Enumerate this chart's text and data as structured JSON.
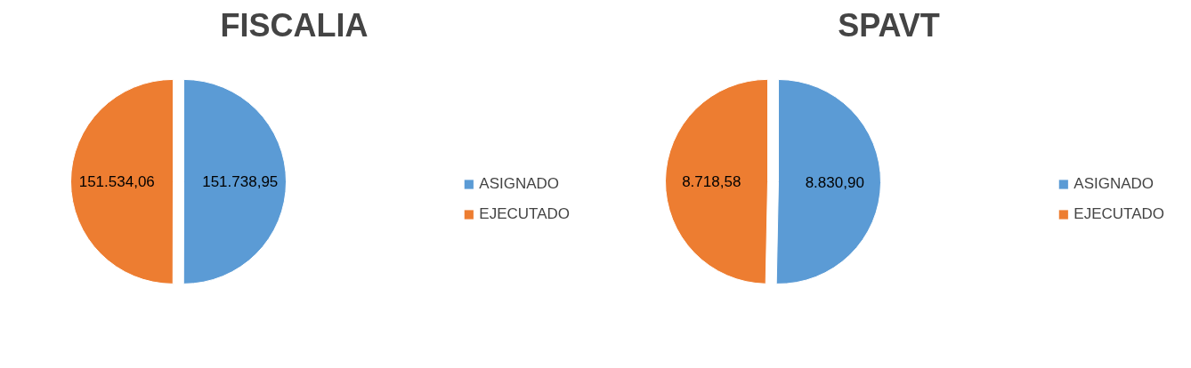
{
  "chart_data": [
    {
      "type": "pie",
      "title": "FISCALIA",
      "categories": [
        "ASIGNADO",
        "EJECUTADO"
      ],
      "values": [
        151738.95,
        151534.06
      ],
      "value_labels": [
        "151.738,95",
        "151.534,06"
      ],
      "colors": [
        "#5b9bd5",
        "#ed7d31"
      ],
      "legend": "right"
    },
    {
      "type": "pie",
      "title": "SPAVT",
      "categories": [
        "ASIGNADO",
        "EJECUTADO"
      ],
      "values": [
        8830.9,
        8718.58
      ],
      "value_labels": [
        "8.830,90",
        "8.718,58"
      ],
      "colors": [
        "#5b9bd5",
        "#ed7d31"
      ],
      "legend": "right"
    }
  ]
}
